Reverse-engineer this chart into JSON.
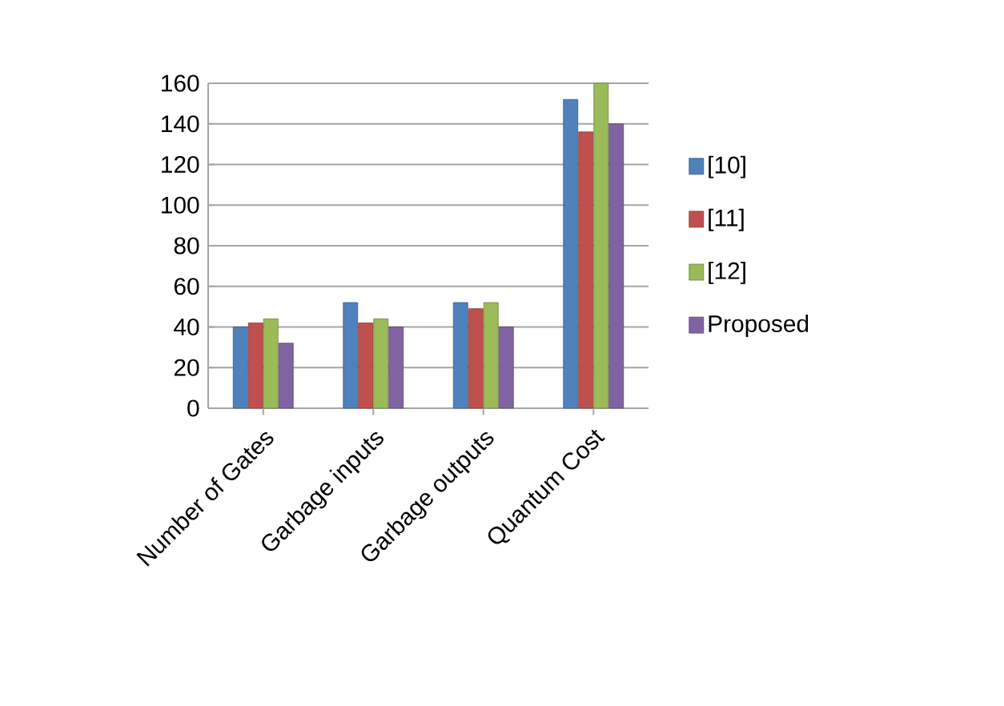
{
  "chart_data": {
    "type": "bar",
    "categories": [
      "Number of Gates",
      "Garbage inputs",
      "Garbage outputs",
      "Quantum Cost"
    ],
    "series": [
      {
        "name": "[10]",
        "color": "#4f81bd",
        "values": [
          40,
          52,
          52,
          152
        ]
      },
      {
        "name": "[11]",
        "color": "#c0504d",
        "values": [
          42,
          42,
          49,
          136
        ]
      },
      {
        "name": "[12]",
        "color": "#9bbb59",
        "values": [
          44,
          44,
          52,
          160
        ]
      },
      {
        "name": "Proposed",
        "color": "#8064a2",
        "values": [
          32,
          40,
          40,
          140
        ]
      }
    ],
    "ylim": [
      0,
      160
    ],
    "yticks": [
      0,
      20,
      40,
      60,
      80,
      100,
      120,
      140,
      160
    ],
    "grid": "y",
    "legend": "right"
  }
}
